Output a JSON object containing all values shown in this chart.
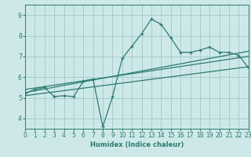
{
  "xlabel": "Humidex (Indice chaleur)",
  "xlim": [
    0,
    23
  ],
  "ylim": [
    3.5,
    9.5
  ],
  "yticks": [
    4,
    5,
    6,
    7,
    8,
    9
  ],
  "xticks": [
    0,
    1,
    2,
    3,
    4,
    5,
    6,
    7,
    8,
    9,
    10,
    11,
    12,
    13,
    14,
    15,
    16,
    17,
    18,
    19,
    20,
    21,
    22,
    23
  ],
  "bg_color": "#cce8e8",
  "grid_color": "#a8cccc",
  "line_color": "#2e7b6e",
  "line1_x": [
    0,
    1,
    2,
    3,
    4,
    5,
    6,
    7,
    8,
    9,
    10,
    11,
    12,
    13,
    14,
    15,
    16,
    17,
    18,
    19,
    20,
    21,
    22,
    23
  ],
  "line1_y": [
    5.2,
    5.4,
    5.5,
    5.05,
    5.1,
    5.05,
    5.8,
    5.9,
    3.6,
    5.05,
    6.9,
    7.5,
    8.1,
    8.8,
    8.55,
    7.9,
    7.2,
    7.2,
    7.3,
    7.45,
    7.2,
    7.2,
    7.05,
    6.45
  ],
  "line2_x": [
    0,
    23
  ],
  "line2_y": [
    5.25,
    7.25
  ],
  "line3_x": [
    0,
    23
  ],
  "line3_y": [
    5.1,
    6.5
  ],
  "line4_x": [
    0,
    23
  ],
  "line4_y": [
    5.4,
    7.0
  ]
}
